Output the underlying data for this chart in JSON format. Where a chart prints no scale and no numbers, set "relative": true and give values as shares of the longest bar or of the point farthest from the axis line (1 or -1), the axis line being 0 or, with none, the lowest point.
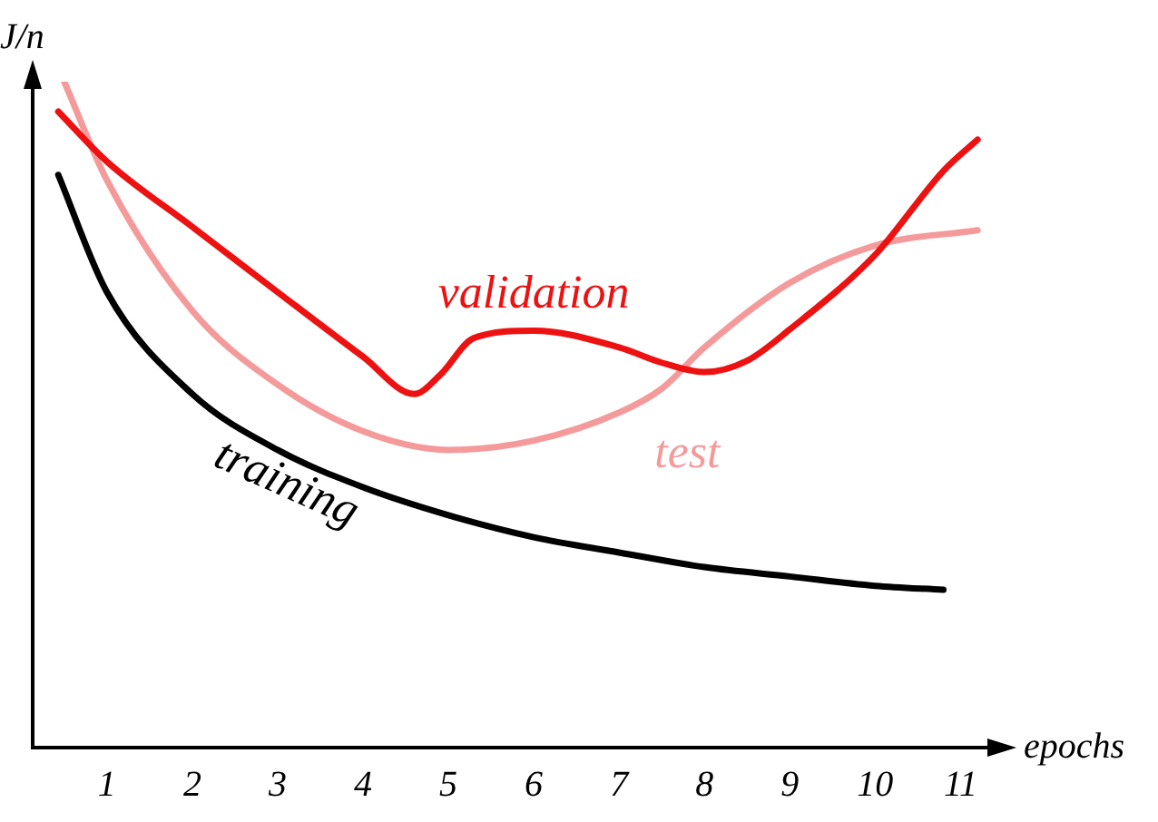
{
  "chart_data": {
    "type": "line",
    "relative": true,
    "xlabel": "epochs",
    "ylabel": "J/n",
    "xlim": [
      0.13,
      11.4
    ],
    "xticks": [
      1,
      2,
      3,
      4,
      5,
      6,
      7,
      8,
      9,
      10,
      11
    ],
    "grid": false,
    "legend": false,
    "marker": "none",
    "line_style": "solid",
    "series": [
      {
        "name": "training",
        "color": "#000000",
        "x": [
          0.43,
          1,
          2,
          3,
          4,
          5,
          6,
          7,
          8,
          9,
          10,
          10.8
        ],
        "values": [
          0.86,
          0.684,
          0.531,
          0.447,
          0.391,
          0.349,
          0.316,
          0.293,
          0.271,
          0.257,
          0.243,
          0.237
        ]
      },
      {
        "name": "validation",
        "color": "#ee1111",
        "x": [
          0.43,
          1,
          2,
          3,
          4,
          4.6,
          4.9,
          5.3,
          6,
          7,
          7.5,
          8,
          8.5,
          9,
          10,
          10.8,
          11.2
        ],
        "values": [
          0.955,
          0.88,
          0.782,
          0.684,
          0.587,
          0.531,
          0.559,
          0.615,
          0.626,
          0.601,
          0.578,
          0.564,
          0.581,
          0.628,
          0.74,
          0.866,
          0.913
        ]
      },
      {
        "name": "test",
        "color": "#f59a9a",
        "x": [
          0.5,
          1,
          2,
          3,
          4,
          5,
          6,
          7,
          7.5,
          8,
          9,
          10,
          11.2
        ],
        "values": [
          1.0,
          0.852,
          0.656,
          0.545,
          0.475,
          0.447,
          0.461,
          0.503,
          0.539,
          0.601,
          0.698,
          0.754,
          0.777
        ]
      }
    ]
  }
}
